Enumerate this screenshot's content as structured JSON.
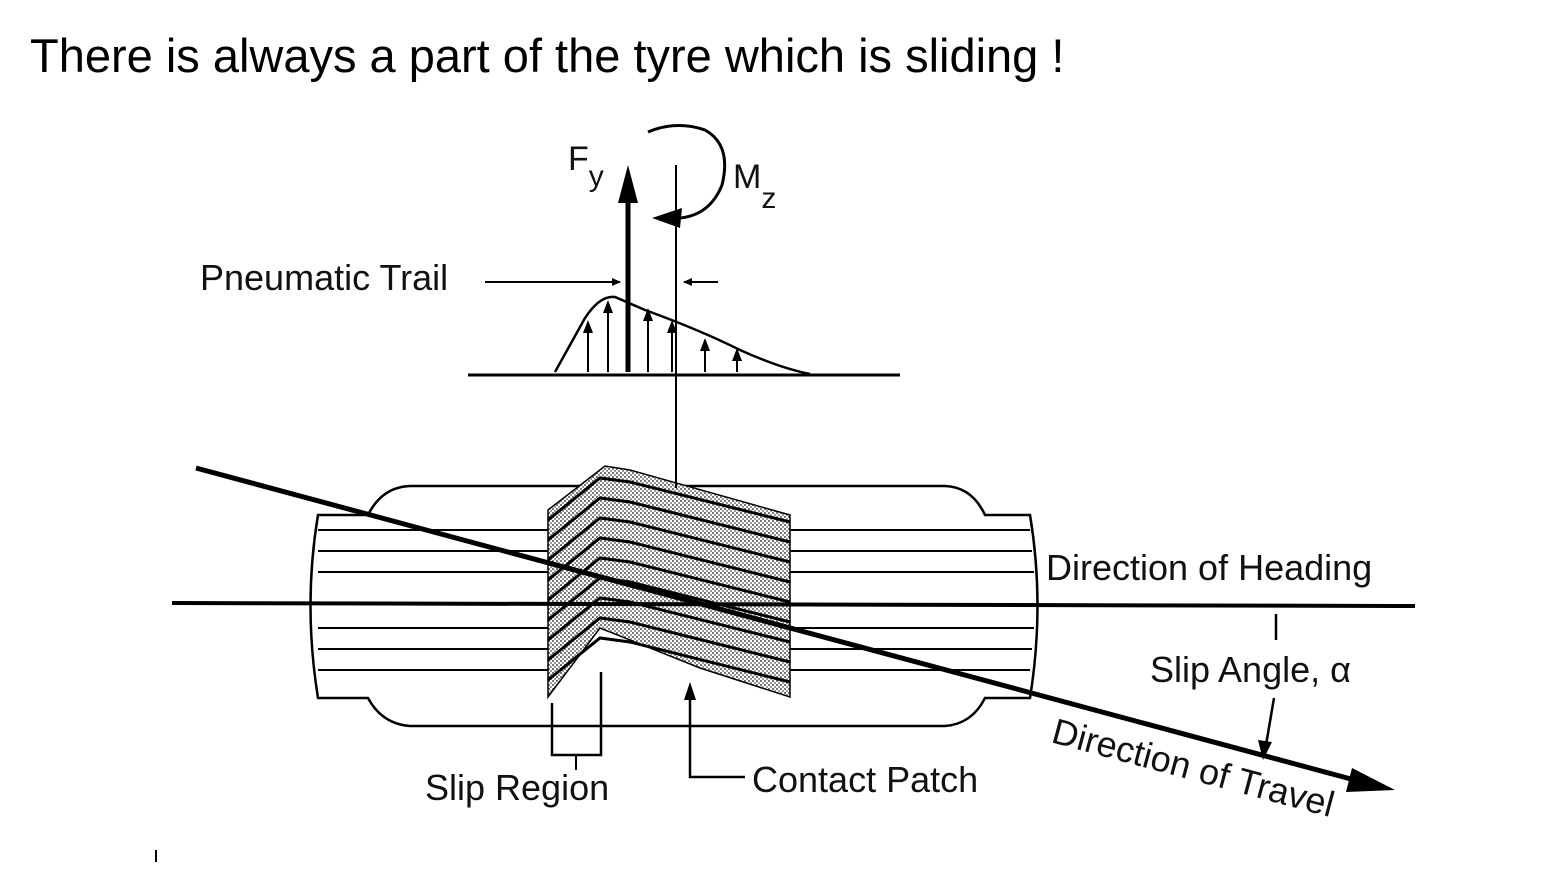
{
  "heading": "There is always a part of the tyre which is sliding !",
  "labels": {
    "force": "F",
    "force_sub": "y",
    "moment": "M",
    "moment_sub": "z",
    "pneumatic_trail": "Pneumatic Trail",
    "direction_heading": "Direction of Heading",
    "slip_angle": "Slip Angle, α",
    "direction_travel": "Direction of Travel",
    "slip_region": "Slip Region",
    "contact_patch": "Contact Patch"
  }
}
